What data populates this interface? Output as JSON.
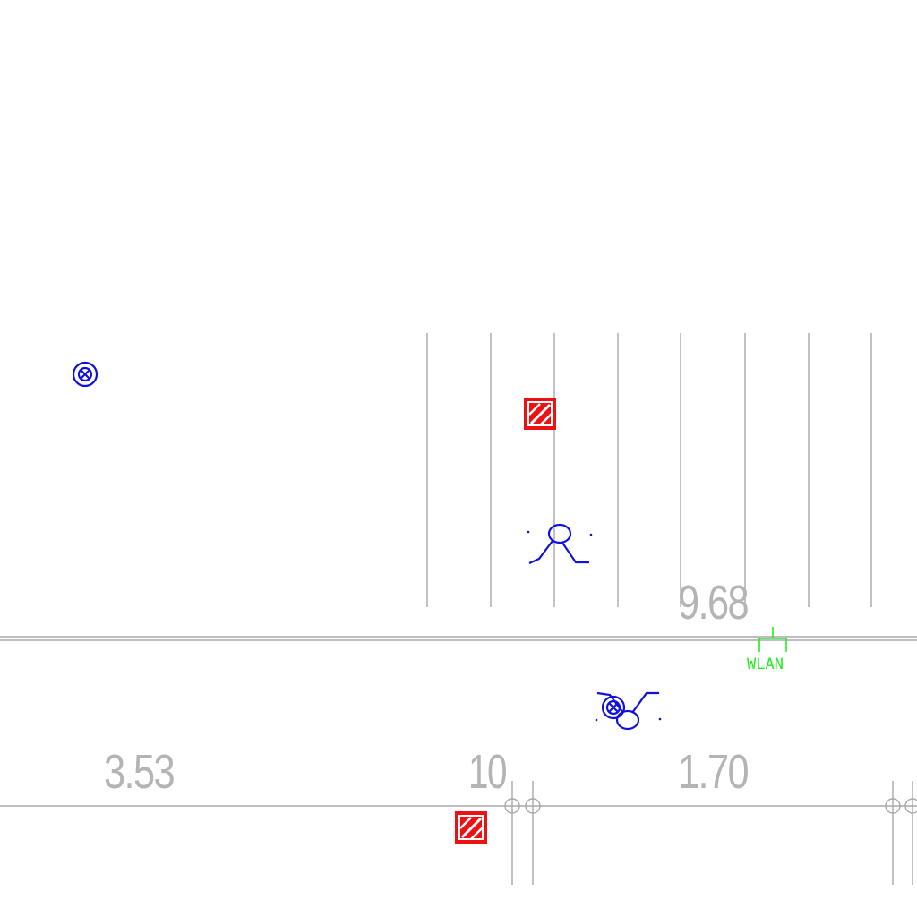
{
  "drawing": {
    "dimension_labels": {
      "top_right": "9.68",
      "bottom_left": "3.53",
      "bottom_mid": "10",
      "bottom_right": "1.70"
    },
    "wlan_label": "WLAN",
    "colors": {
      "background": "#ffffff",
      "dimension_lines": "#a8a8a8",
      "dimension_text": "#b4b4b4",
      "symbols_blue": "#1010dd",
      "symbols_red": "#ee1111",
      "wlan_green": "#22ee22"
    },
    "symbols": [
      "junction-box-icon",
      "fire-alarm-icon",
      "desk-chair-icon",
      "wlan-access-point-icon",
      "chair-with-junction-icon"
    ]
  }
}
